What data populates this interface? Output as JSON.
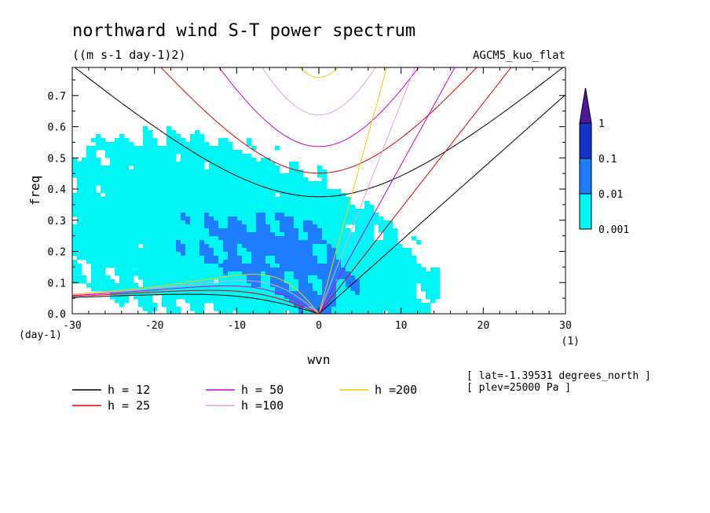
{
  "chart_data": {
    "type": "contour",
    "title": "northward wind S-T power spectrum",
    "units": "((m s-1 day-1)2)",
    "model_label": "AGCM5_kuo_flat",
    "xlabel": "wvn",
    "ylabel": "freq",
    "x_unit_label": "(1)",
    "y_unit_label": "(day-1)",
    "xlim": [
      -30,
      30
    ],
    "ylim": [
      0,
      0.79
    ],
    "x_ticks": [
      -30,
      -20,
      -10,
      0,
      10,
      20,
      30
    ],
    "x_tick_labels": [
      "-30",
      "-20",
      "-10",
      "0",
      "10",
      "20",
      "30"
    ],
    "y_ticks": [
      0,
      0.1,
      0.2,
      0.3,
      0.4,
      0.5,
      0.6,
      0.7
    ],
    "y_tick_labels": [
      "0.0",
      "0.1",
      "0.2",
      "0.3",
      "0.4",
      "0.5",
      "0.6",
      "0.7"
    ],
    "colorbar": {
      "levels": [
        0.001,
        0.01,
        0.1,
        1
      ],
      "labels": [
        "0.001",
        "0.01",
        "0.1",
        "1"
      ],
      "colors": [
        "#00f5f5",
        "#1e7cff",
        "#1432c8",
        "#4a1a9a"
      ]
    },
    "dispersion_curves": [
      {
        "h": 12,
        "label": "h = 12",
        "color": "#000000"
      },
      {
        "h": 25,
        "label": "h = 25",
        "color": "#e00000"
      },
      {
        "h": 50,
        "label": "h = 50",
        "color": "#d000d0"
      },
      {
        "h": 100,
        "label": "h =100",
        "color": "#e0a0e0"
      },
      {
        "h": 200,
        "label": "h =200",
        "color": "#f0d000"
      }
    ],
    "legend_placement": "bottom-left",
    "annotations": [
      "[ lat=-1.39531 degrees_north ]",
      "[ plev=25000 Pa ]"
    ]
  }
}
